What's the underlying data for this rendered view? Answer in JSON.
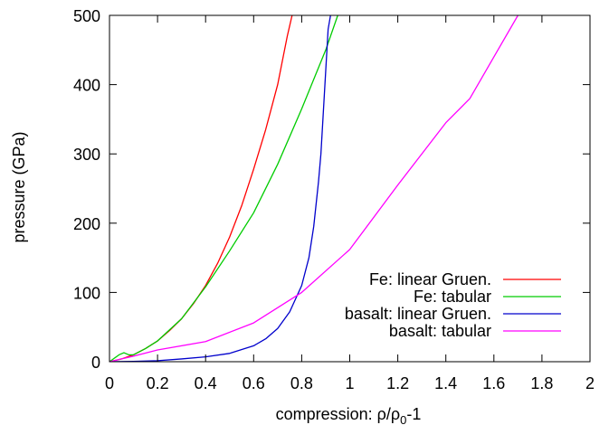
{
  "chart_data": {
    "type": "line",
    "title": "",
    "xlabel": "compression: ρ/ρ0-1",
    "xlabel_parts": {
      "base": "compression: ρ/ρ",
      "sub": "0",
      "tail": "-1"
    },
    "ylabel": "pressure (GPa)",
    "xlim": [
      0,
      2
    ],
    "ylim": [
      0,
      500
    ],
    "xticks": [
      0,
      0.2,
      0.4,
      0.6,
      0.8,
      1,
      1.2,
      1.4,
      1.6,
      1.8,
      2
    ],
    "xtick_labels": [
      "0",
      "0.2",
      "0.4",
      "0.6",
      "0.8",
      "1",
      "1.2",
      "1.4",
      "1.6",
      "1.8",
      "2"
    ],
    "yticks": [
      0,
      100,
      200,
      300,
      400,
      500
    ],
    "ytick_labels": [
      "0",
      "100",
      "200",
      "300",
      "400",
      "500"
    ],
    "grid": false,
    "legend_position": "bottom-right",
    "series": [
      {
        "name": "Fe: linear Gruen.",
        "color": "#ff0000",
        "x": [
          0,
          0.05,
          0.1,
          0.15,
          0.2,
          0.25,
          0.3,
          0.35,
          0.4,
          0.45,
          0.5,
          0.55,
          0.6,
          0.65,
          0.7,
          0.72,
          0.74,
          0.76
        ],
        "y": [
          0,
          4,
          10,
          19,
          30,
          45,
          62,
          84,
          110,
          142,
          180,
          225,
          278,
          335,
          400,
          435,
          470,
          500
        ]
      },
      {
        "name": "Fe: tabular",
        "color": "#00cc00",
        "x": [
          0,
          0.04,
          0.06,
          0.08,
          0.1,
          0.15,
          0.2,
          0.3,
          0.4,
          0.5,
          0.6,
          0.7,
          0.8,
          0.9,
          0.95
        ],
        "y": [
          0,
          10,
          13,
          10,
          10,
          19,
          30,
          62,
          108,
          160,
          215,
          285,
          365,
          450,
          500
        ]
      },
      {
        "name": "basalt: linear Gruen.",
        "color": "#0000cc",
        "x": [
          0,
          0.1,
          0.2,
          0.3,
          0.4,
          0.5,
          0.6,
          0.65,
          0.7,
          0.75,
          0.8,
          0.83,
          0.85,
          0.87,
          0.88,
          0.89,
          0.9,
          0.91,
          0.92
        ],
        "y": [
          0,
          0.5,
          1.5,
          4,
          7,
          12,
          23,
          33,
          48,
          72,
          110,
          150,
          195,
          260,
          300,
          360,
          420,
          480,
          500
        ]
      },
      {
        "name": "basalt: tabular",
        "color": "#ff00ff",
        "x": [
          0,
          0.1,
          0.2,
          0.4,
          0.6,
          0.8,
          1.0,
          1.2,
          1.4,
          1.5,
          1.6,
          1.7
        ],
        "y": [
          0,
          8,
          17,
          29,
          56,
          100,
          162,
          255,
          345,
          380,
          440,
          500
        ]
      }
    ]
  }
}
